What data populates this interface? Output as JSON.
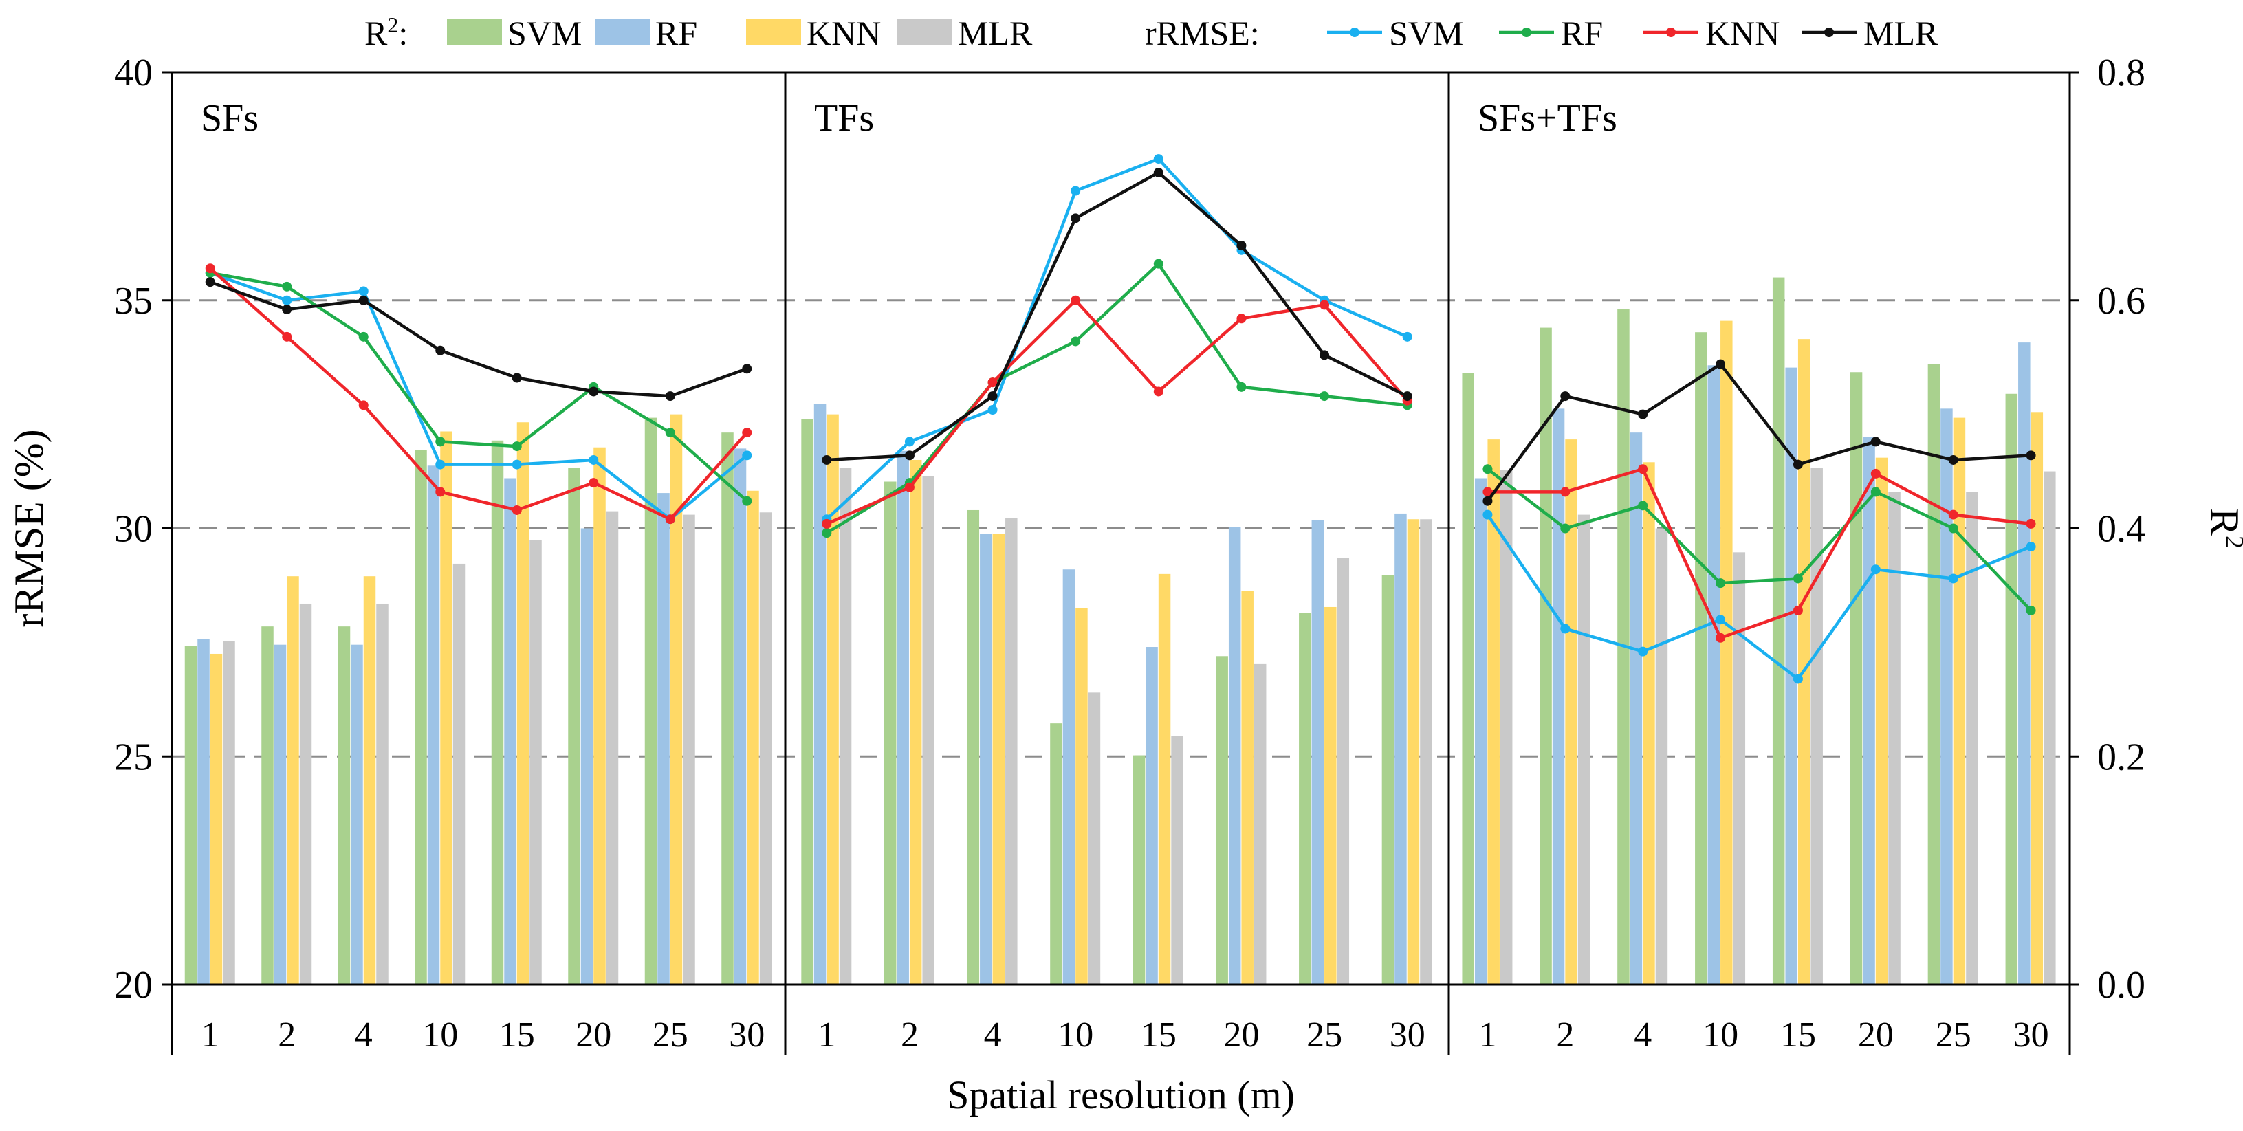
{
  "chart_data": {
    "type": "bar+line",
    "x_categories": [
      "1",
      "2",
      "4",
      "10",
      "15",
      "20",
      "25",
      "30"
    ],
    "xlabel": "Spatial resolution (m)",
    "ylabel_left": "rRMSE (%)",
    "ylabel_right": "R",
    "ylabel_right_sup": "2",
    "left_axis": {
      "range": [
        20,
        40
      ],
      "ticks": [
        "20",
        "25",
        "30",
        "35",
        "40"
      ],
      "tick_values": [
        20,
        25,
        30,
        35,
        40
      ]
    },
    "right_axis": {
      "range": [
        0,
        0.8
      ],
      "ticks": [
        "0.0",
        "0.2",
        "0.4",
        "0.6",
        "0.8"
      ],
      "tick_values": [
        0,
        0.2,
        0.4,
        0.6,
        0.8
      ]
    },
    "gridlines_dashed_at": [
      25,
      30,
      35
    ],
    "legend": {
      "bar_title": "R",
      "bar_title_sup": "2",
      "bar_title_suffix": ":",
      "line_title": "rRMSE:",
      "bar_entries": [
        "SVM",
        "RF",
        "KNN",
        "MLR"
      ],
      "line_entries": [
        "SVM",
        "RF",
        "KNN",
        "MLR"
      ]
    },
    "bar_colors": {
      "SVM": "#a9d18e",
      "RF": "#9dc3e6",
      "KNN": "#ffd966",
      "MLR": "#c9c9c9"
    },
    "line_colors": {
      "SVM": "#1ab0f0",
      "RF": "#1fad4b",
      "KNN": "#f0262b",
      "MLR": "#111111"
    },
    "panels": [
      {
        "title": "SFs",
        "r2": {
          "SVM": [
            0.297,
            0.314,
            0.314,
            0.469,
            0.477,
            0.453,
            0.497,
            0.484
          ],
          "RF": [
            0.303,
            0.298,
            0.298,
            0.455,
            0.444,
            0.4,
            0.431,
            0.47
          ],
          "KNN": [
            0.29,
            0.358,
            0.358,
            0.485,
            0.493,
            0.471,
            0.5,
            0.433
          ],
          "MLR": [
            0.301,
            0.334,
            0.334,
            0.369,
            0.39,
            0.415,
            0.412,
            0.414
          ]
        },
        "rrmse": {
          "SVM": [
            35.6,
            35.0,
            35.2,
            31.4,
            31.4,
            31.5,
            30.2,
            31.6
          ],
          "RF": [
            35.6,
            35.3,
            34.2,
            31.9,
            31.8,
            33.1,
            32.1,
            30.6
          ],
          "KNN": [
            35.7,
            34.2,
            32.7,
            30.8,
            30.4,
            31.0,
            30.2,
            32.1
          ],
          "MLR": [
            35.4,
            34.8,
            35.0,
            33.9,
            33.3,
            33.0,
            32.9,
            33.5
          ]
        }
      },
      {
        "title": "TFs",
        "r2": {
          "SVM": [
            0.496,
            0.441,
            0.416,
            0.229,
            0.201,
            0.288,
            0.326,
            0.359
          ],
          "RF": [
            0.509,
            0.468,
            0.395,
            0.364,
            0.296,
            0.401,
            0.407,
            0.413
          ],
          "KNN": [
            0.5,
            0.46,
            0.395,
            0.33,
            0.36,
            0.345,
            0.331,
            0.408
          ],
          "MLR": [
            0.453,
            0.446,
            0.409,
            0.256,
            0.218,
            0.281,
            0.374,
            0.408
          ]
        },
        "rrmse": {
          "SVM": [
            30.2,
            31.9,
            32.6,
            37.4,
            38.1,
            36.1,
            35.0,
            34.2
          ],
          "RF": [
            29.9,
            31.0,
            33.2,
            34.1,
            35.8,
            33.1,
            32.9,
            32.7
          ],
          "KNN": [
            30.1,
            30.9,
            33.2,
            35.0,
            33.0,
            34.6,
            34.9,
            32.8
          ],
          "MLR": [
            31.5,
            31.6,
            32.9,
            36.8,
            37.8,
            36.2,
            33.8,
            32.9
          ]
        }
      },
      {
        "title": "SFs+TFs",
        "r2": {
          "SVM": [
            0.536,
            0.576,
            0.592,
            0.572,
            0.62,
            0.537,
            0.544,
            0.518
          ],
          "RF": [
            0.444,
            0.505,
            0.484,
            0.543,
            0.541,
            0.48,
            0.505,
            0.563
          ],
          "KNN": [
            0.478,
            0.478,
            0.458,
            0.582,
            0.566,
            0.462,
            0.497,
            0.502
          ],
          "MLR": [
            0.451,
            0.412,
            0.4,
            0.379,
            0.453,
            0.432,
            0.432,
            0.45
          ]
        },
        "rrmse": {
          "SVM": [
            30.3,
            27.8,
            27.3,
            28.0,
            26.7,
            29.1,
            28.9,
            29.6
          ],
          "RF": [
            31.3,
            30.0,
            30.5,
            28.8,
            28.9,
            30.8,
            30.0,
            28.2
          ],
          "KNN": [
            30.8,
            30.8,
            31.3,
            27.6,
            28.2,
            31.2,
            30.3,
            30.1
          ],
          "MLR": [
            30.6,
            32.9,
            32.5,
            33.6,
            31.4,
            31.9,
            31.5,
            31.6
          ]
        }
      }
    ]
  }
}
